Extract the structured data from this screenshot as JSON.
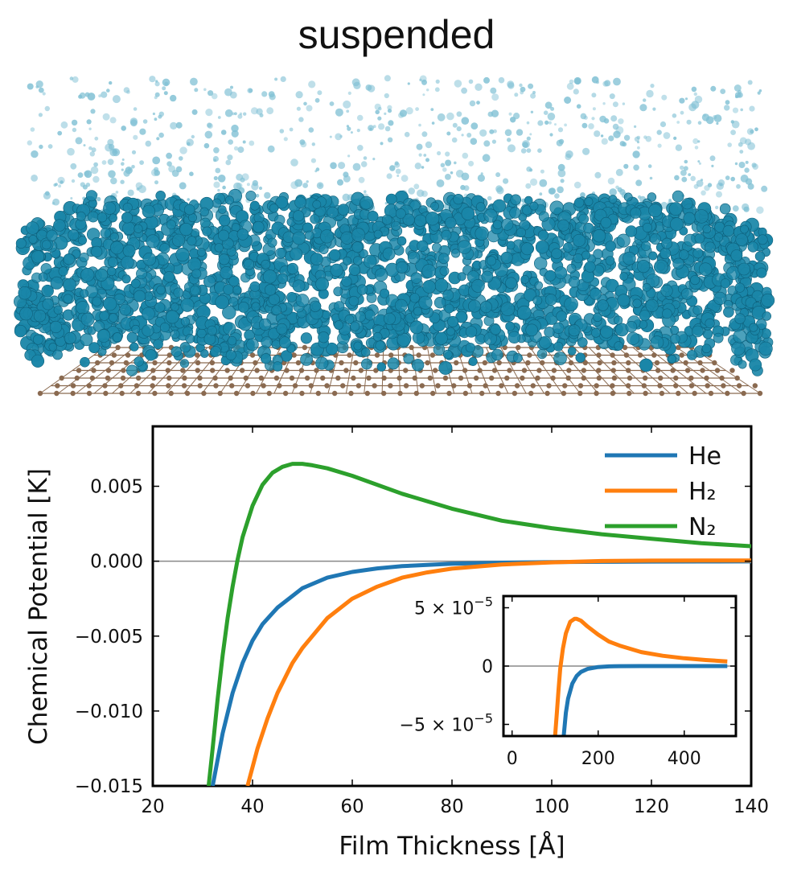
{
  "title": "suspended",
  "scene": {
    "adsorbate_color": "#1a86a8",
    "vapor_color": "#7fc0d4",
    "substrate_color": "#8a6a50"
  },
  "chart_data": [
    {
      "type": "line",
      "xlabel": "Film Thickness [Å]",
      "ylabel": "Chemical Potential [K]",
      "xlim": [
        20,
        140
      ],
      "ylim": [
        -0.015,
        0.009
      ],
      "xticks": [
        "20",
        "40",
        "60",
        "80",
        "100",
        "120",
        "140"
      ],
      "yticks": [
        "0.005",
        "0.000",
        "−0.005",
        "−0.010",
        "−0.015"
      ],
      "grid": false,
      "zero_line": true,
      "legend_placement": "top-right",
      "series": [
        {
          "name": "He",
          "color": "#1f77b4",
          "x": [
            32,
            34,
            36,
            38,
            40,
            42,
            45,
            50,
            55,
            60,
            65,
            70,
            80,
            90,
            100,
            110,
            120,
            130,
            140
          ],
          "y": [
            -0.015,
            -0.0115,
            -0.0088,
            -0.0068,
            -0.0053,
            -0.0042,
            -0.0031,
            -0.0018,
            -0.0011,
            -0.00072,
            -0.00048,
            -0.00033,
            -0.00017,
            -0.0001,
            -6.2e-05,
            -4e-05,
            -2.7e-05,
            -1.9e-05,
            -1.4e-05
          ]
        },
        {
          "name": "H₂",
          "color": "#ff7f0e",
          "x": [
            39,
            41,
            43,
            45,
            48,
            50,
            55,
            60,
            65,
            70,
            75,
            80,
            90,
            100,
            110,
            120,
            130,
            140
          ],
          "y": [
            -0.015,
            -0.0125,
            -0.0105,
            -0.0088,
            -0.0068,
            -0.0058,
            -0.0038,
            -0.0025,
            -0.0017,
            -0.0011,
            -0.00075,
            -0.0005,
            -0.00022,
            -8e-05,
            1e-05,
            4e-05,
            5e-05,
            5e-05
          ]
        },
        {
          "name": "N₂",
          "color": "#2ca02c",
          "x": [
            31.2,
            32,
            33,
            34,
            35,
            36,
            37,
            38,
            40,
            42,
            44,
            46,
            48,
            50,
            52,
            55,
            60,
            70,
            80,
            90,
            100,
            110,
            120,
            130,
            140
          ],
          "y": [
            -0.015,
            -0.0125,
            -0.0092,
            -0.0063,
            -0.0038,
            -0.0017,
            0.0001,
            0.0016,
            0.0037,
            0.0051,
            0.0059,
            0.0063,
            0.0065,
            0.0065,
            0.0064,
            0.0062,
            0.0057,
            0.0045,
            0.0035,
            0.0027,
            0.0022,
            0.0018,
            0.0015,
            0.0012,
            0.001
          ]
        }
      ]
    },
    {
      "type": "line",
      "role": "inset",
      "xlim": [
        -20,
        520
      ],
      "ylim": [
        -6e-05,
        6e-05
      ],
      "xticks": [
        "0",
        "200",
        "400"
      ],
      "yticks": [
        {
          "value": 5e-05,
          "mantissa": "5 × 10",
          "exp": "−5"
        },
        {
          "value": 0,
          "mantissa": "0",
          "exp": ""
        },
        {
          "value": -5e-05,
          "mantissa": "−5 × 10",
          "exp": "−5"
        }
      ],
      "zero_line": true,
      "series": [
        {
          "name": "He",
          "color": "#1f77b4",
          "x": [
            120,
            125,
            130,
            140,
            150,
            160,
            175,
            200,
            225,
            250,
            300,
            350,
            400,
            450,
            500
          ],
          "y": [
            -6e-05,
            -4e-05,
            -2.8e-05,
            -1.5e-05,
            -8.5e-06,
            -5e-06,
            -2.5e-06,
            -8e-07,
            -3e-07,
            -1e-07,
            0,
            0,
            0,
            0,
            0
          ]
        },
        {
          "name": "H₂",
          "color": "#ff7f0e",
          "x": [
            100,
            104,
            108,
            112,
            118,
            125,
            135,
            145,
            150,
            160,
            175,
            200,
            225,
            250,
            300,
            350,
            400,
            450,
            500
          ],
          "y": [
            -6e-05,
            -4e-05,
            -2e-05,
            -2e-06,
            1.5e-05,
            2.8e-05,
            3.8e-05,
            4.05e-05,
            4.05e-05,
            3.9e-05,
            3.4e-05,
            2.7e-05,
            2.1e-05,
            1.75e-05,
            1.2e-05,
            8.8e-06,
            6.7e-06,
            5.2e-06,
            4e-06
          ]
        }
      ]
    }
  ]
}
